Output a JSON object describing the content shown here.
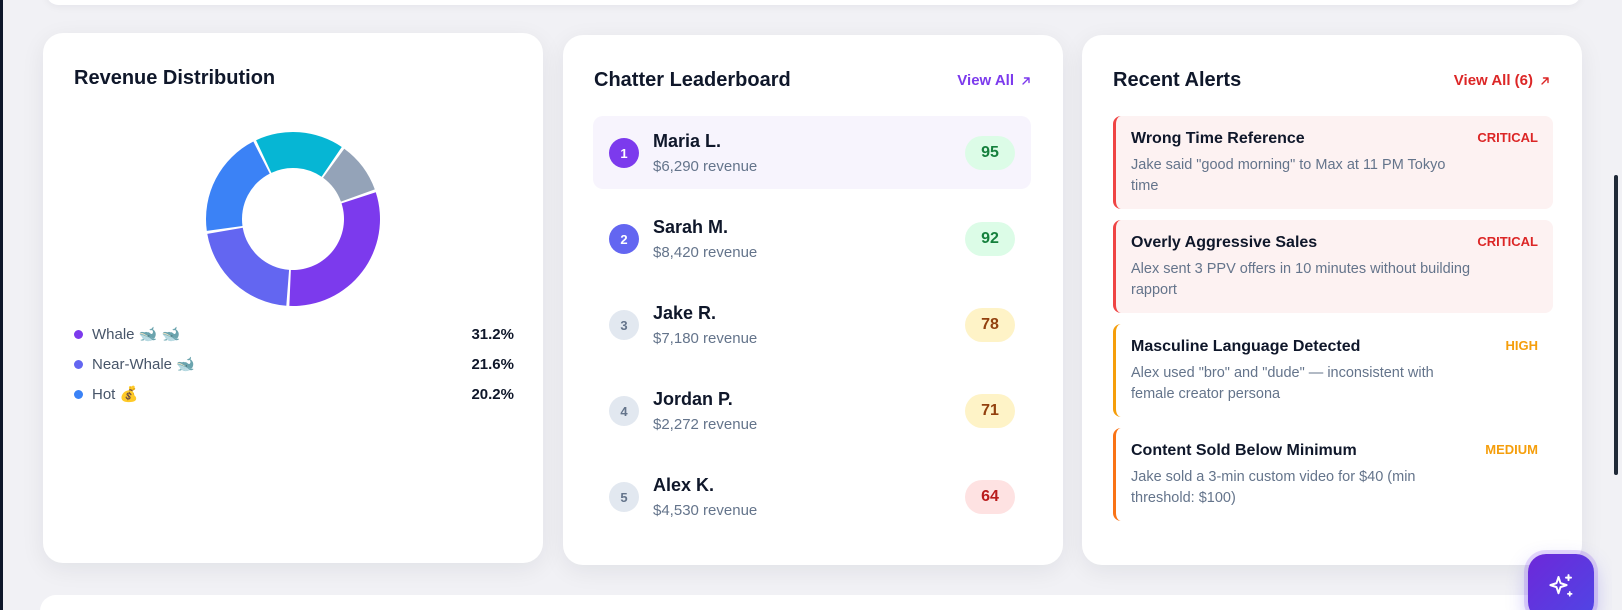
{
  "revenue": {
    "title": "Revenue Distribution",
    "legend": [
      {
        "label": "Whale 🐋 🐋",
        "value": "31.2%",
        "color": "#7c3aed"
      },
      {
        "label": "Near-Whale 🐋",
        "value": "21.6%",
        "color": "#6366f1"
      },
      {
        "label": "Hot 💰",
        "value": "20.2%",
        "color": "#3b82f6"
      }
    ],
    "chart_data": {
      "type": "pie",
      "slices": [
        {
          "label": "Whale",
          "value": 31.2,
          "color": "#7c3aed"
        },
        {
          "label": "Near-Whale",
          "value": 21.6,
          "color": "#6366f1"
        },
        {
          "label": "Hot",
          "value": 20.2,
          "color": "#3b82f6"
        },
        {
          "value": 17.0,
          "color": "#06b6d4"
        },
        {
          "value": 10.0,
          "color": "#94a3b8"
        }
      ]
    }
  },
  "leaderboard": {
    "title": "Chatter Leaderboard",
    "view_all": "View All",
    "rows": [
      {
        "rank": "1",
        "name": "Maria L.",
        "revenue": "$6,290 revenue",
        "score": "95"
      },
      {
        "rank": "2",
        "name": "Sarah M.",
        "revenue": "$8,420 revenue",
        "score": "92"
      },
      {
        "rank": "3",
        "name": "Jake R.",
        "revenue": "$7,180 revenue",
        "score": "78"
      },
      {
        "rank": "4",
        "name": "Jordan P.",
        "revenue": "$2,272 revenue",
        "score": "71"
      },
      {
        "rank": "5",
        "name": "Alex K.",
        "revenue": "$4,530 revenue",
        "score": "64"
      }
    ]
  },
  "alerts": {
    "title": "Recent Alerts",
    "view_all": "View All (6)",
    "items": [
      {
        "title": "Wrong Time Reference",
        "severity": "CRITICAL",
        "desc": "Jake said \"good morning\" to Max at 11 PM Tokyo time"
      },
      {
        "title": "Overly Aggressive Sales",
        "severity": "CRITICAL",
        "desc": "Alex sent 3 PPV offers in 10 minutes without building rapport"
      },
      {
        "title": "Masculine Language Detected",
        "severity": "HIGH",
        "desc": "Alex used \"bro\" and \"dude\" — inconsistent with female creator persona"
      },
      {
        "title": "Content Sold Below Minimum",
        "severity": "MEDIUM",
        "desc": "Jake sold a 3-min custom video for $40 (min threshold: $100)"
      }
    ]
  },
  "icons": {
    "view_all": "arrow-up-right-icon",
    "fab": "sparkles-icon"
  }
}
